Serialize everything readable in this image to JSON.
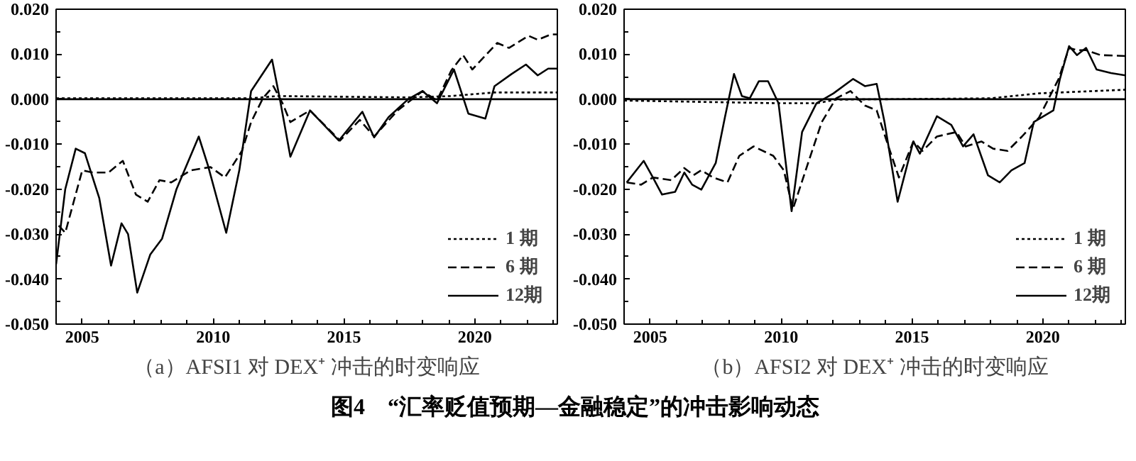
{
  "chart_data": [
    {
      "type": "line",
      "title": "（a）AFSI1 对 DEX⁺ 冲击的时变响应",
      "annotations": [
        "图4　“汇率贬值预期—金融稳定”的冲击影响动态"
      ],
      "xlim": [
        2004,
        2023.15
      ],
      "ylim": [
        -0.05,
        0.02
      ],
      "xticks": [
        {
          "value": 2004,
          "label": null
        },
        2005,
        {
          "value": 2006,
          "label": null
        },
        {
          "value": 2007,
          "label": null
        },
        {
          "value": 2008,
          "label": null
        },
        {
          "value": 2009,
          "label": null
        },
        2010,
        {
          "value": 2011,
          "label": null
        },
        {
          "value": 2012,
          "label": null
        },
        {
          "value": 2013,
          "label": null
        },
        {
          "value": 2014,
          "label": null
        },
        2015,
        {
          "value": 2016,
          "label": null
        },
        {
          "value": 2017,
          "label": null
        },
        {
          "value": 2018,
          "label": null
        },
        {
          "value": 2019,
          "label": null
        },
        2020,
        {
          "value": 2021,
          "label": null
        },
        {
          "value": 2022,
          "label": null
        },
        {
          "value": 2023,
          "label": null
        }
      ],
      "yticks": [
        {
          "value": -0.05,
          "label": "-0.050"
        },
        {
          "value": -0.045,
          "label": null
        },
        {
          "value": -0.04,
          "label": "-0.040"
        },
        {
          "value": -0.035,
          "label": null
        },
        {
          "value": -0.03,
          "label": "-0.030"
        },
        {
          "value": -0.025,
          "label": null
        },
        {
          "value": -0.02,
          "label": "-0.020"
        },
        {
          "value": -0.015,
          "label": null
        },
        {
          "value": -0.01,
          "label": "-0.010"
        },
        {
          "value": -0.005,
          "label": null
        },
        {
          "value": 0,
          "label": "0.000"
        },
        {
          "value": 0.005,
          "label": null
        },
        {
          "value": 0.01,
          "label": "0.010"
        },
        {
          "value": 0.015,
          "label": null
        },
        {
          "value": 0.02,
          "label": "0.020"
        }
      ],
      "grid": false,
      "legend": "bottom right",
      "marker": "none",
      "ref_lines": [
        {
          "axis": "y",
          "value": 0,
          "color": "#000000",
          "line_style": "solid"
        }
      ],
      "series": [
        {
          "name": "1 期",
          "color": "#000000",
          "line_style": "dotted",
          "x": [
            2004.0,
            2011.45,
            2012.45,
            2017.45,
            2019.1,
            2020.75,
            2023.15
          ],
          "values": [
            0.0002,
            0.0002,
            0.0007,
            0.0004,
            0.0007,
            0.0015,
            0.0015
          ]
        },
        {
          "name": "6 期",
          "color": "#000000",
          "line_style": "dashed",
          "x": [
            2004.1,
            2004.35,
            2005.0,
            2005.4,
            2006.0,
            2006.55,
            2007.05,
            2007.5,
            2007.95,
            2008.4,
            2009.15,
            2009.9,
            2010.45,
            2011.1,
            2011.45,
            2011.9,
            2012.3,
            2012.65,
            2012.95,
            2013.7,
            2014.85,
            2015.6,
            2016.15,
            2017.05,
            2018.0,
            2018.55,
            2019.1,
            2019.55,
            2019.9,
            2020.85,
            2021.3,
            2022.05,
            2022.4,
            2022.9,
            2023.15
          ],
          "values": [
            -0.0281,
            -0.0297,
            -0.0158,
            -0.0163,
            -0.0163,
            -0.0137,
            -0.0212,
            -0.0228,
            -0.018,
            -0.0185,
            -0.0158,
            -0.0151,
            -0.0174,
            -0.0115,
            -0.0051,
            0.0002,
            0.0029,
            -0.0009,
            -0.0051,
            -0.0025,
            -0.0092,
            -0.0046,
            -0.0083,
            -0.0025,
            0.0018,
            -0.0003,
            0.0064,
            0.0098,
            0.0066,
            0.0125,
            0.0114,
            0.0141,
            0.0132,
            0.0144,
            0.0144
          ]
        },
        {
          "name": "12期",
          "color": "#000000",
          "line_style": "solid",
          "x": [
            2004.0,
            2004.35,
            2004.75,
            2005.1,
            2005.65,
            2006.1,
            2006.5,
            2006.75,
            2007.1,
            2007.6,
            2008.05,
            2008.6,
            2009.45,
            2009.8,
            2010.5,
            2011.0,
            2011.45,
            2012.25,
            2012.55,
            2012.95,
            2013.7,
            2014.8,
            2015.7,
            2016.15,
            2016.7,
            2017.45,
            2018.0,
            2018.55,
            2019.2,
            2019.75,
            2020.4,
            2020.75,
            2021.4,
            2021.95,
            2022.4,
            2022.8,
            2023.15
          ],
          "values": [
            -0.0367,
            -0.02,
            -0.011,
            -0.012,
            -0.022,
            -0.037,
            -0.0276,
            -0.03,
            -0.043,
            -0.0345,
            -0.031,
            -0.02,
            -0.0083,
            -0.0147,
            -0.0297,
            -0.0158,
            0.0018,
            0.0088,
            0.0,
            -0.0128,
            -0.0025,
            -0.0092,
            -0.0028,
            -0.0085,
            -0.004,
            0.0,
            0.0018,
            -0.0009,
            0.0066,
            -0.0032,
            -0.0043,
            0.0029,
            0.0056,
            0.0077,
            0.0053,
            0.0068,
            0.0068
          ]
        }
      ]
    },
    {
      "type": "line",
      "title": "（b）AFSI2 对 DEX⁺ 冲击的时变响应",
      "xlim": [
        2004,
        2023.15
      ],
      "ylim": [
        -0.05,
        0.02
      ],
      "xticks": [
        {
          "value": 2004,
          "label": null
        },
        2005,
        {
          "value": 2006,
          "label": null
        },
        {
          "value": 2007,
          "label": null
        },
        {
          "value": 2008,
          "label": null
        },
        {
          "value": 2009,
          "label": null
        },
        2010,
        {
          "value": 2011,
          "label": null
        },
        {
          "value": 2012,
          "label": null
        },
        {
          "value": 2013,
          "label": null
        },
        {
          "value": 2014,
          "label": null
        },
        2015,
        {
          "value": 2016,
          "label": null
        },
        {
          "value": 2017,
          "label": null
        },
        {
          "value": 2018,
          "label": null
        },
        {
          "value": 2019,
          "label": null
        },
        2020,
        {
          "value": 2021,
          "label": null
        },
        {
          "value": 2022,
          "label": null
        },
        {
          "value": 2023,
          "label": null
        }
      ],
      "yticks": [
        {
          "value": -0.05,
          "label": "-0.050"
        },
        {
          "value": -0.045,
          "label": null
        },
        {
          "value": -0.04,
          "label": "-0.040"
        },
        {
          "value": -0.035,
          "label": null
        },
        {
          "value": -0.03,
          "label": "-0.030"
        },
        {
          "value": -0.025,
          "label": null
        },
        {
          "value": -0.02,
          "label": "-0.020"
        },
        {
          "value": -0.015,
          "label": null
        },
        {
          "value": -0.01,
          "label": "-0.010"
        },
        {
          "value": -0.005,
          "label": null
        },
        {
          "value": 0,
          "label": "0.000"
        },
        {
          "value": 0.005,
          "label": null
        },
        {
          "value": 0.01,
          "label": "0.010"
        },
        {
          "value": 0.015,
          "label": null
        },
        {
          "value": 0.02,
          "label": "0.020"
        }
      ],
      "grid": false,
      "legend": "bottom right",
      "marker": "none",
      "ref_lines": [
        {
          "axis": "y",
          "value": 0,
          "color": "#000000",
          "line_style": "solid"
        }
      ],
      "series": [
        {
          "name": "1 期",
          "color": "#000000",
          "line_style": "dotted",
          "x": [
            2004.0,
            2009.9,
            2011.35,
            2012.1,
            2018.0,
            2019.85,
            2023.15
          ],
          "values": [
            -0.0003,
            -0.0009,
            -0.0009,
            -0.0001,
            0.0002,
            0.0013,
            0.0021
          ]
        },
        {
          "name": "6 期",
          "color": "#000000",
          "line_style": "dashed",
          "x": [
            2004.1,
            2004.65,
            2005.1,
            2005.8,
            2006.3,
            2006.65,
            2006.95,
            2007.4,
            2007.95,
            2008.4,
            2008.95,
            2009.7,
            2010.1,
            2010.45,
            2011.0,
            2011.55,
            2012.1,
            2012.65,
            2013.2,
            2013.65,
            2014.1,
            2014.5,
            2015.05,
            2015.4,
            2015.95,
            2016.7,
            2017.05,
            2017.65,
            2018.1,
            2018.65,
            2019.2,
            2019.85,
            2020.6,
            2021.0,
            2021.3,
            2021.65,
            2022.2,
            2023.15
          ],
          "values": [
            -0.0185,
            -0.019,
            -0.0174,
            -0.018,
            -0.0153,
            -0.0169,
            -0.0158,
            -0.0174,
            -0.0185,
            -0.0126,
            -0.0105,
            -0.0126,
            -0.0158,
            -0.0244,
            -0.0147,
            -0.0051,
            0.0002,
            0.0018,
            -0.0014,
            -0.0025,
            -0.0105,
            -0.0174,
            -0.0094,
            -0.0115,
            -0.0083,
            -0.0073,
            -0.0105,
            -0.0094,
            -0.011,
            -0.0115,
            -0.0083,
            -0.0041,
            0.0045,
            0.0114,
            0.0109,
            0.0109,
            0.0098,
            0.0096
          ]
        },
        {
          "name": "12期",
          "color": "#000000",
          "line_style": "solid",
          "x": [
            2004.1,
            2004.75,
            2005.1,
            2005.45,
            2005.95,
            2006.3,
            2006.6,
            2006.95,
            2007.5,
            2007.85,
            2008.2,
            2008.5,
            2008.8,
            2009.15,
            2009.5,
            2009.9,
            2010.4,
            2010.8,
            2011.35,
            2012.0,
            2012.75,
            2013.2,
            2013.65,
            2013.95,
            2014.45,
            2015.05,
            2015.3,
            2015.95,
            2016.5,
            2016.95,
            2017.35,
            2017.9,
            2018.35,
            2018.8,
            2019.3,
            2019.65,
            2020.4,
            2020.65,
            2021.0,
            2021.3,
            2021.65,
            2022.05,
            2022.6,
            2023.15
          ],
          "values": [
            -0.0185,
            -0.0137,
            -0.0174,
            -0.0212,
            -0.0206,
            -0.0163,
            -0.019,
            -0.0201,
            -0.0142,
            -0.0041,
            0.0056,
            0.0007,
            0.0002,
            0.004,
            0.004,
            -0.0009,
            -0.0249,
            -0.0073,
            -0.0009,
            0.0013,
            0.0045,
            0.0029,
            0.0034,
            -0.0051,
            -0.0228,
            -0.0094,
            -0.0121,
            -0.0038,
            -0.0057,
            -0.0105,
            -0.0078,
            -0.0169,
            -0.0185,
            -0.0158,
            -0.0142,
            -0.0051,
            -0.0025,
            0.0045,
            0.0118,
            0.0098,
            0.0114,
            0.0066,
            0.0058,
            0.0053
          ]
        }
      ]
    }
  ]
}
